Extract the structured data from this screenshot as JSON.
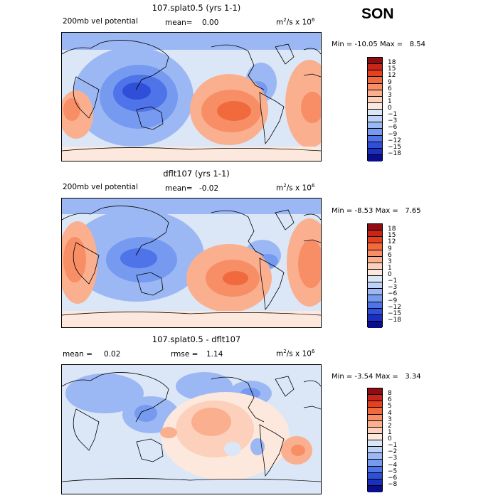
{
  "season": "SON",
  "unit_prefix": "m",
  "unit_mid": "/s x 10",
  "unit_sup1": "2",
  "unit_sup2": "6",
  "panels": [
    {
      "title": "107.splat0.5 (yrs 1-1)",
      "left_label": "200mb vel potential",
      "stat_label": "mean=",
      "stat_value": "0.00",
      "min_label": "Min =",
      "min_value": "-10.05",
      "max_label": "Max =",
      "max_value": "8.54",
      "colorbar_labels": [
        "18",
        "15",
        "12",
        "9",
        "6",
        "3",
        "1",
        "0",
        "−1",
        "−3",
        "−6",
        "−9",
        "−12",
        "−15",
        "−18"
      ],
      "colorbar_colors": [
        "#8f0d10",
        "#c8241a",
        "#e6411e",
        "#f06a3e",
        "#f78e66",
        "#faaf8e",
        "#fcd0bb",
        "#fde8dd",
        "#dbe7f7",
        "#bdd2f6",
        "#9cb8f4",
        "#759af0",
        "#4f73e8",
        "#2f4fd8",
        "#1a2fc0",
        "#0a0d8c"
      ],
      "chart_data": {
        "type": "heatmap",
        "title": "107.splat0.5 (yrs 1-1)",
        "field": "200mb velocity potential",
        "units": "m^2/s x 10^6",
        "mean": 0.0,
        "min": -10.05,
        "max": 8.54,
        "levels": [
          -18,
          -15,
          -12,
          -9,
          -6,
          -3,
          -1,
          0,
          1,
          3,
          6,
          9,
          12,
          15,
          18
        ]
      }
    },
    {
      "title": "dflt107 (yrs 1-1)",
      "left_label": "200mb vel potential",
      "stat_label": "mean=",
      "stat_value": "-0.02",
      "min_label": "Min =",
      "min_value": "-8.53",
      "max_label": "Max =",
      "max_value": "7.65",
      "colorbar_labels": [
        "18",
        "15",
        "12",
        "9",
        "6",
        "3",
        "1",
        "0",
        "−1",
        "−3",
        "−6",
        "−9",
        "−12",
        "−15",
        "−18"
      ],
      "colorbar_colors": [
        "#8f0d10",
        "#c8241a",
        "#e6411e",
        "#f06a3e",
        "#f78e66",
        "#faaf8e",
        "#fcd0bb",
        "#fde8dd",
        "#dbe7f7",
        "#bdd2f6",
        "#9cb8f4",
        "#759af0",
        "#4f73e8",
        "#2f4fd8",
        "#1a2fc0",
        "#0a0d8c"
      ],
      "chart_data": {
        "type": "heatmap",
        "title": "dflt107 (yrs 1-1)",
        "field": "200mb velocity potential",
        "units": "m^2/s x 10^6",
        "mean": -0.02,
        "min": -8.53,
        "max": 7.65,
        "levels": [
          -18,
          -15,
          -12,
          -9,
          -6,
          -3,
          -1,
          0,
          1,
          3,
          6,
          9,
          12,
          15,
          18
        ]
      }
    },
    {
      "title": "107.splat0.5 - dflt107",
      "left_label": "mean =",
      "left_value": "0.02",
      "stat_label": "rmse =",
      "stat_value": "1.14",
      "min_label": "Min =",
      "min_value": "-3.54",
      "max_label": "Max =",
      "max_value": "3.34",
      "colorbar_labels": [
        "8",
        "6",
        "5",
        "4",
        "3",
        "2",
        "1",
        "0",
        "−1",
        "−2",
        "−3",
        "−4",
        "−5",
        "−6",
        "−8"
      ],
      "colorbar_colors": [
        "#8f0d10",
        "#c8241a",
        "#e6411e",
        "#f06a3e",
        "#f78e66",
        "#faaf8e",
        "#fcd0bb",
        "#fde8dd",
        "#dbe7f7",
        "#bdd2f6",
        "#9cb8f4",
        "#759af0",
        "#4f73e8",
        "#2f4fd8",
        "#1a2fc0",
        "#0a0d8c"
      ],
      "chart_data": {
        "type": "heatmap",
        "title": "107.splat0.5 - dflt107",
        "field": "difference",
        "units": "m^2/s x 10^6",
        "mean": 0.02,
        "rmse": 1.14,
        "min": -3.54,
        "max": 3.34,
        "levels": [
          -8,
          -6,
          -5,
          -4,
          -3,
          -2,
          -1,
          0,
          1,
          2,
          3,
          4,
          5,
          6,
          8
        ]
      }
    }
  ]
}
